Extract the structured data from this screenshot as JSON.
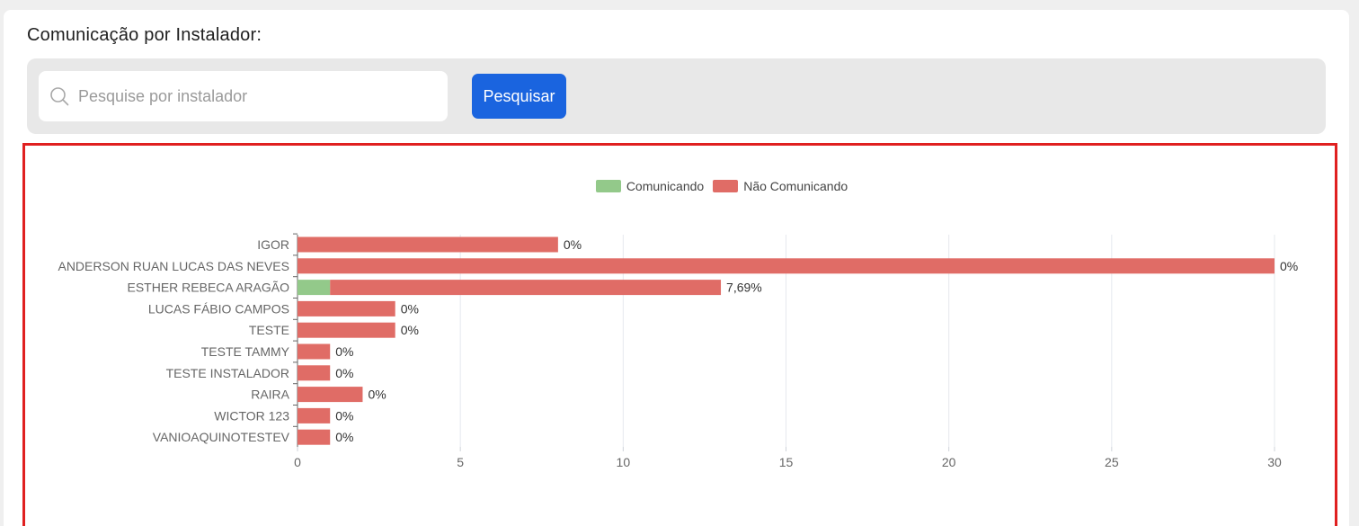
{
  "page": {
    "title": "Comunicação por Instalador:"
  },
  "search": {
    "placeholder": "Pesquise por instalador",
    "value": "",
    "button_label": "Pesquisar"
  },
  "colors": {
    "comunicando": "#93c98a",
    "nao_comunicando": "#e06c66",
    "grid": "#e6e8ee",
    "axis_text": "#666666",
    "button": "#1a64df",
    "highlight_border": "#e02020"
  },
  "chart_data": {
    "type": "bar",
    "orientation": "horizontal",
    "stacked": true,
    "categories": [
      "IGOR",
      "ANDERSON RUAN LUCAS DAS NEVES",
      "ESTHER REBECA ARAGÃO",
      "LUCAS FÁBIO CAMPOS",
      "TESTE",
      "TESTE TAMMY",
      "TESTE INSTALADOR",
      "RAIRA",
      "WICTOR 123",
      "VANIOAQUINOTESTEV"
    ],
    "series": [
      {
        "name": "Comunicando",
        "color": "#93c98a",
        "values": [
          0,
          0,
          1,
          0,
          0,
          0,
          0,
          0,
          0,
          0
        ]
      },
      {
        "name": "Não Comunicando",
        "color": "#e06c66",
        "values": [
          8,
          30,
          12,
          3,
          3,
          1,
          1,
          2,
          1,
          1
        ]
      }
    ],
    "data_labels": [
      "0%",
      "0%",
      "7,69%",
      "0%",
      "0%",
      "0%",
      "0%",
      "0%",
      "0%",
      "0%"
    ],
    "x_ticks": [
      0,
      5,
      10,
      15,
      20,
      25,
      30
    ],
    "xlim": [
      0,
      30
    ],
    "legend_position": "top",
    "grid": true,
    "title": "",
    "xlabel": "",
    "ylabel": ""
  }
}
